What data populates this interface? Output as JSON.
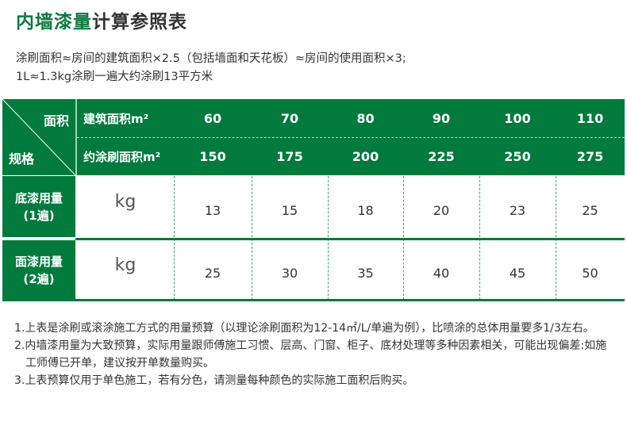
{
  "title": {
    "green": "内墙漆量",
    "rest": "计算参照表"
  },
  "intro": [
    "涂刷面积≈房间的建筑面积×2.5（包括墙面和天花板）≈房间的使用面积×3;",
    "1L≈1.3kg涂刷一遍大约涂刷13平方米"
  ],
  "table": {
    "corner_top": "面积",
    "corner_bottom": "规格",
    "row_labels": [
      "建筑面积m²",
      "约涂刷面积m²"
    ],
    "building_area": [
      "60",
      "70",
      "80",
      "90",
      "100",
      "110"
    ],
    "paint_area": [
      "150",
      "175",
      "200",
      "225",
      "250",
      "275"
    ],
    "primer": {
      "label1": "底漆用量",
      "label2": "(1遍)",
      "unit": "kg",
      "values": [
        "13",
        "15",
        "18",
        "20",
        "23",
        "25"
      ]
    },
    "topcoat": {
      "label1": "面漆用量",
      "label2": "(2遍)",
      "unit": "kg",
      "values": [
        "25",
        "30",
        "35",
        "40",
        "45",
        "50"
      ]
    }
  },
  "notes": [
    "1.上表是涂刷或滚涂施工方式的用量预算（以理论涂刷面积为12-14㎡/L/单遍为例），比喷涂的总体用量要多1/3左右。",
    "2.内墙漆用量为大致预算，实际用量跟师傅施工习惯、层高、门窗、柜子、底材处理等多种因素相关，可能出现偏差:如施工师傅已开单，建议按开单数量购买。",
    "3.上表预算仅用于单色施工，若有分色，请测量每种颜色的实际施工面积后购买。"
  ],
  "colors": {
    "brand_green": "#007a3d"
  }
}
